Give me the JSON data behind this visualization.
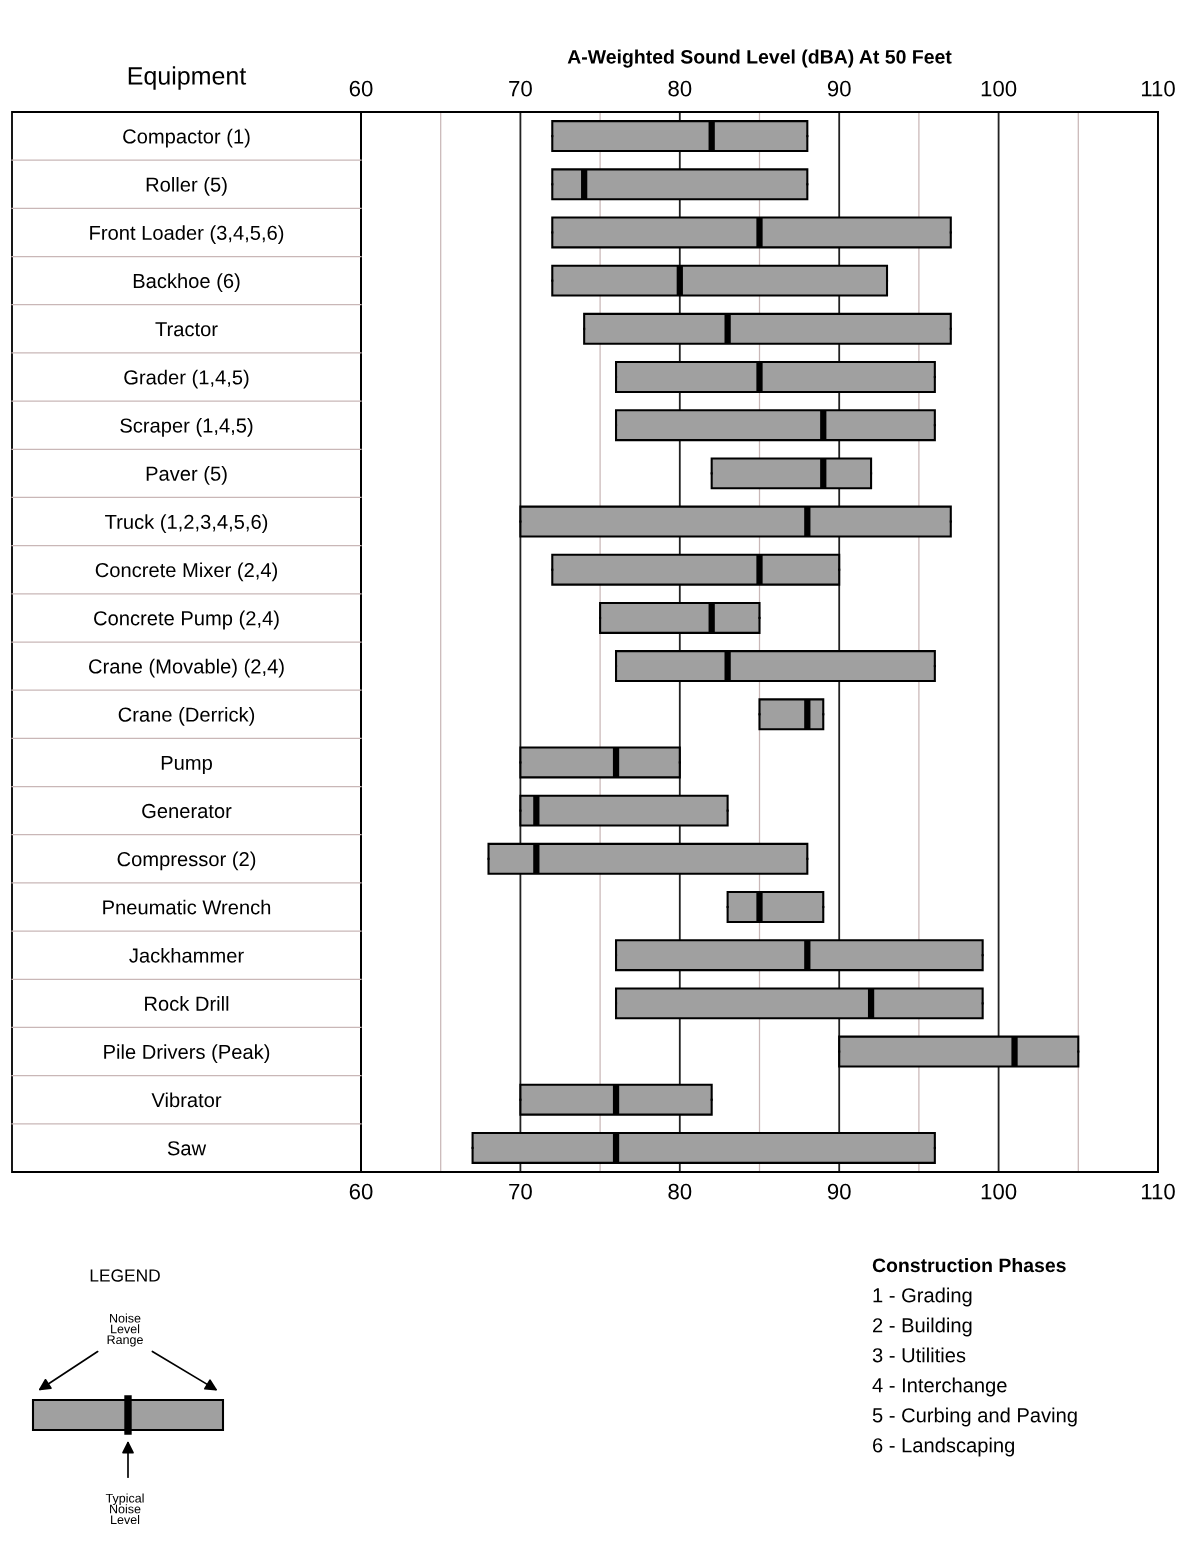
{
  "chart_data": {
    "type": "box",
    "orientation": "horizontal",
    "x2label": "A-Weighted Sound Level (dBA) At 50 Feet",
    "ylabel": "Equipment",
    "categories": [
      "Compactor (1)",
      "Roller (5)",
      "Front Loader (3,4,5,6)",
      "Backhoe (6)",
      "Tractor",
      "Grader (1,4,5)",
      "Scraper (1,4,5)",
      "Paver (5)",
      "Truck (1,2,3,4,5,6)",
      "Concrete Mixer (2,4)",
      "Concrete Pump (2,4)",
      "Crane (Movable) (2,4)",
      "Crane (Derrick)",
      "Pump",
      "Generator",
      "Compressor (2)",
      "Pneumatic Wrench",
      "Jackhammer",
      "Rock Drill",
      "Pile Drivers (Peak)",
      "Vibrator",
      "Saw"
    ],
    "series": [
      {
        "color": "#a0a0a0",
        "boxes": [
          {
            "low": 72,
            "q1": 72,
            "median": 82,
            "q3": 88,
            "high": 88
          },
          {
            "low": 72,
            "q1": 72,
            "median": 74,
            "q3": 88,
            "high": 88
          },
          {
            "low": 72,
            "q1": 72,
            "median": 85,
            "q3": 97,
            "high": 97
          },
          {
            "low": 72,
            "q1": 72,
            "median": 80,
            "q3": 93,
            "high": 93
          },
          {
            "low": 74,
            "q1": 74,
            "median": 83,
            "q3": 97,
            "high": 97
          },
          {
            "low": 76,
            "q1": 76,
            "median": 85,
            "q3": 96,
            "high": 96
          },
          {
            "low": 76,
            "q1": 76,
            "median": 89,
            "q3": 96,
            "high": 96
          },
          {
            "low": 82,
            "q1": 82,
            "median": 89,
            "q3": 92,
            "high": 92
          },
          {
            "low": 70,
            "q1": 70,
            "median": 88,
            "q3": 97,
            "high": 97
          },
          {
            "low": 72,
            "q1": 72,
            "median": 85,
            "q3": 90,
            "high": 90
          },
          {
            "low": 75,
            "q1": 75,
            "median": 82,
            "q3": 85,
            "high": 85
          },
          {
            "low": 76,
            "q1": 76,
            "median": 83,
            "q3": 96,
            "high": 96
          },
          {
            "low": 85,
            "q1": 85,
            "median": 88,
            "q3": 89,
            "high": 89
          },
          {
            "low": 70,
            "q1": 70,
            "median": 76,
            "q3": 80,
            "high": 80
          },
          {
            "low": 70,
            "q1": 70,
            "median": 71,
            "q3": 83,
            "high": 83
          },
          {
            "low": 68,
            "q1": 68,
            "median": 71,
            "q3": 88,
            "high": 88
          },
          {
            "low": 83,
            "q1": 83,
            "median": 85,
            "q3": 89,
            "high": 89
          },
          {
            "low": 76,
            "q1": 76,
            "median": 88,
            "q3": 99,
            "high": 99
          },
          {
            "low": 76,
            "q1": 76,
            "median": 92,
            "q3": 99,
            "high": 99
          },
          {
            "low": 90,
            "q1": 90,
            "median": 101,
            "q3": 105,
            "high": 105
          },
          {
            "low": 70,
            "q1": 70,
            "median": 76,
            "q3": 82,
            "high": 82
          },
          {
            "low": 67,
            "q1": 67,
            "median": 76,
            "q3": 96,
            "high": 96
          }
        ]
      }
    ],
    "xlim": [
      60,
      110
    ],
    "xticks": [
      60,
      {
        "value": 65,
        "label": null
      },
      70,
      {
        "value": 75,
        "label": null
      },
      80,
      {
        "value": 85,
        "label": null
      },
      90,
      {
        "value": 95,
        "label": null
      },
      100,
      {
        "value": 105,
        "label": null
      },
      110
    ],
    "x2lim": [
      60,
      110
    ],
    "x2ticks": [
      60,
      70,
      80,
      90,
      100,
      110
    ],
    "grid": true,
    "annotations": [
      "LEGEND",
      "Noise Level Range",
      "Typical Noise Level",
      "Construction Phases",
      "1 - Grading",
      "2 - Building",
      "3 - Utilities",
      "4 - Interchange",
      "5 - Curbing and Paving",
      "6 - Landscaping"
    ]
  }
}
